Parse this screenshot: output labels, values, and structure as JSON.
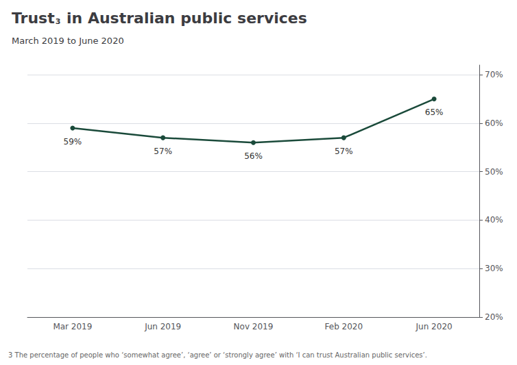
{
  "chart_data": {
    "type": "line",
    "title": "Trust",
    "title_subscript": "3",
    "title_rest": " in Australian public services",
    "subtitle": "March 2019 to June 2020",
    "footnote": "3 The percentage of people who ‘somewhat agree’, ‘agree’ or ‘strongly agree’ with ‘I can trust Australian public services’.",
    "categories": [
      "Mar 2019",
      "Jun 2019",
      "Nov 2019",
      "Feb 2020",
      "Jun 2020"
    ],
    "values": [
      59,
      57,
      56,
      57,
      65
    ],
    "value_labels": [
      "59%",
      "57%",
      "56%",
      "57%",
      "65%"
    ],
    "data_labels": true,
    "color": "#1a4a3a",
    "marker": "circle",
    "ylim": [
      20,
      72
    ],
    "yticks": [
      {
        "value": 20,
        "label": "20%"
      },
      {
        "value": 30,
        "label": "30%"
      },
      {
        "value": 40,
        "label": "40%"
      },
      {
        "value": 50,
        "label": "50%"
      },
      {
        "value": 60,
        "label": "60%"
      },
      {
        "value": 70,
        "label": "70%"
      }
    ],
    "grid": true
  }
}
